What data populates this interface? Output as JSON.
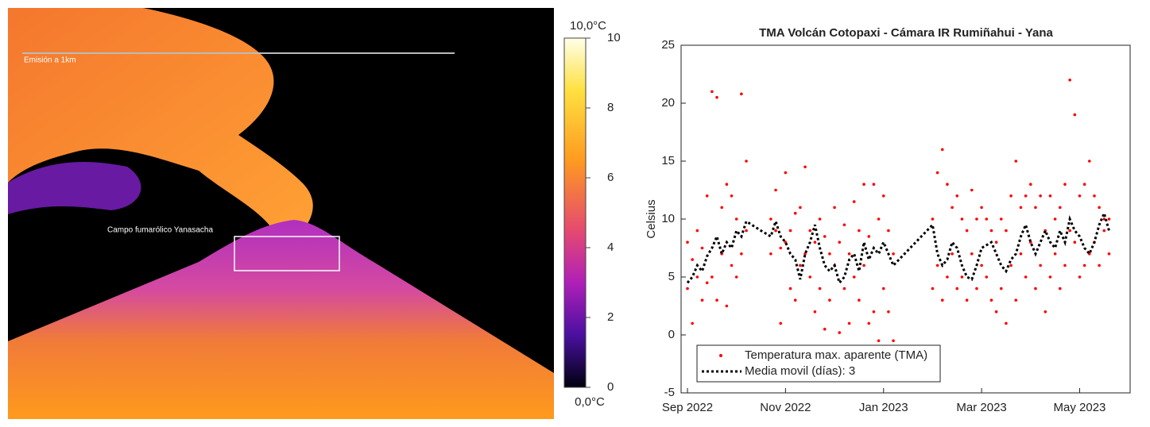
{
  "thermal_image": {
    "labels": [
      "Emisión a 1km",
      "Campo fumarólico Yanasacha"
    ]
  },
  "chart_data": [
    {
      "type": "colorbar",
      "max_label": "10,0°C",
      "min_label": "0,0°C",
      "ylim": [
        0,
        10
      ],
      "yticks": [
        0,
        2,
        4,
        6,
        8,
        10
      ]
    },
    {
      "type": "scatter",
      "title": "TMA Volcán Cotopaxi - Cámara IR Rumiñahui - Yana",
      "y_label": "Celsius",
      "xlim": [
        -0.13,
        9.03
      ],
      "xticks": [
        {
          "value": 0,
          "label": "Sep 2022"
        },
        {
          "value": 2,
          "label": "Nov 2022"
        },
        {
          "value": 4,
          "label": "Jan 2023"
        },
        {
          "value": 6,
          "label": "Mar 2023"
        },
        {
          "value": 8,
          "label": "May 2023"
        }
      ],
      "ylim": [
        -5,
        25
      ],
      "yticks": [
        -5,
        0,
        5,
        10,
        15,
        20,
        25
      ],
      "legend": "lower left",
      "series": [
        {
          "name": "Temperatura max. aparente (TMA)",
          "color": "#ff0000",
          "style": "points",
          "x": [
            0,
            0,
            0.1,
            0.1,
            0.2,
            0.2,
            0.3,
            0.3,
            0.4,
            0.4,
            0.5,
            0.5,
            0.6,
            0.6,
            0.7,
            0.7,
            0.8,
            0.8,
            0.9,
            0.9,
            1,
            1,
            1.1,
            1.1,
            1.2,
            1.2,
            1.7,
            1.7,
            1.8,
            1.8,
            1.9,
            1.9,
            2,
            2,
            2.1,
            2.1,
            2.2,
            2.2,
            2.3,
            2.3,
            2.4,
            2.4,
            2.5,
            2.5,
            2.6,
            2.6,
            2.7,
            2.7,
            2.8,
            2.8,
            2.9,
            2.9,
            3,
            3,
            3.1,
            3.1,
            3.2,
            3.2,
            3.3,
            3.3,
            3.4,
            3.4,
            3.5,
            3.5,
            3.6,
            3.6,
            3.7,
            3.7,
            3.8,
            3.8,
            3.9,
            3.9,
            4,
            4,
            4.1,
            4.1,
            4.2,
            4.2,
            5,
            5,
            5.1,
            5.1,
            5.2,
            5.2,
            5.3,
            5.3,
            5.4,
            5.4,
            5.5,
            5.5,
            5.6,
            5.6,
            5.7,
            5.7,
            5.8,
            5.8,
            5.9,
            5.9,
            6,
            6,
            6.1,
            6.1,
            6.2,
            6.2,
            6.3,
            6.3,
            6.4,
            6.4,
            6.5,
            6.5,
            6.6,
            6.6,
            6.7,
            6.7,
            6.8,
            6.8,
            6.9,
            6.9,
            7,
            7,
            7.1,
            7.1,
            7.2,
            7.2,
            7.3,
            7.3,
            7.4,
            7.4,
            7.5,
            7.5,
            7.6,
            7.6,
            7.7,
            7.7,
            7.8,
            7.8,
            7.9,
            7.9,
            8,
            8,
            8.1,
            8.1,
            8.2,
            8.2,
            8.3,
            8.3,
            8.4,
            8.4,
            8.5,
            8.5,
            8.6,
            8.6
          ],
          "values": [
            4,
            8,
            1,
            6.5,
            5,
            9,
            3,
            7.5,
            4.5,
            12,
            21,
            5,
            20.5,
            3,
            7,
            11,
            2.5,
            13,
            6,
            12,
            5,
            10,
            20.8,
            7,
            9,
            15,
            7,
            10,
            9,
            12.5,
            1,
            7.5,
            8,
            14,
            4,
            9,
            3,
            10.5,
            6,
            11,
            7,
            14.5,
            5,
            9,
            2,
            8,
            4,
            10,
            0.5,
            8.5,
            3,
            7,
            6,
            11,
            0.2,
            8,
            4,
            9.5,
            1,
            7,
            5,
            11.5,
            3,
            9,
            6,
            13,
            1,
            8.5,
            2,
            13,
            -0.5,
            10,
            4,
            12,
            2,
            9,
            -0.5,
            7,
            4,
            10,
            6,
            14,
            3,
            16,
            5,
            13,
            7,
            11,
            4,
            12,
            5,
            10,
            3,
            9,
            7,
            12.5,
            4,
            10,
            6,
            11,
            5,
            10,
            3,
            9,
            2,
            8,
            4,
            10,
            1,
            9,
            6,
            12,
            3,
            15,
            7,
            11,
            5,
            12,
            8,
            13,
            4,
            11,
            6,
            12,
            2,
            9,
            5,
            12,
            7,
            10,
            4,
            11,
            6,
            13,
            9,
            22,
            8,
            19,
            5,
            12,
            6,
            13,
            7,
            15,
            8,
            12,
            6,
            11,
            9,
            10,
            7,
            10
          ]
        },
        {
          "name": "Media movil (días): 3",
          "color": "#000000",
          "style": "dotted",
          "x": [
            0,
            0.1,
            0.2,
            0.3,
            0.4,
            0.5,
            0.6,
            0.7,
            0.8,
            0.9,
            1,
            1.1,
            1.2,
            1.5,
            1.7,
            1.8,
            1.9,
            2,
            2.1,
            2.2,
            2.3,
            2.4,
            2.5,
            2.6,
            2.7,
            2.8,
            2.9,
            3,
            3.1,
            3.2,
            3.3,
            3.4,
            3.5,
            3.6,
            3.7,
            3.8,
            3.9,
            4,
            4.1,
            4.2,
            5,
            5.1,
            5.2,
            5.3,
            5.4,
            5.5,
            5.6,
            5.7,
            5.8,
            5.9,
            6,
            6.2,
            6.3,
            6.4,
            6.5,
            6.6,
            6.7,
            6.8,
            6.9,
            7,
            7.1,
            7.2,
            7.3,
            7.4,
            7.5,
            7.6,
            7.7,
            7.8,
            7.9,
            8,
            8.1,
            8.2,
            8.3,
            8.4,
            8.5,
            8.6
          ],
          "values": [
            4.5,
            5,
            6,
            5.5,
            6.8,
            7.5,
            8.5,
            7,
            8,
            7.5,
            9,
            8.5,
            9.8,
            9,
            8.5,
            9.8,
            8.5,
            8,
            7,
            6.5,
            4.8,
            7,
            8,
            9.5,
            7.5,
            6,
            5.5,
            6,
            4.5,
            5,
            6.5,
            7,
            5.5,
            8,
            6.5,
            7.5,
            7,
            8,
            7,
            6,
            9.5,
            7,
            6,
            6.5,
            8,
            7.5,
            6,
            5,
            4.8,
            6,
            7.5,
            8,
            7,
            6,
            5.5,
            6.5,
            7,
            8.5,
            9.5,
            8,
            7,
            8,
            9,
            8,
            7.5,
            9,
            8,
            10,
            9,
            8.5,
            7.5,
            7,
            8,
            9.5,
            10.5,
            9
          ]
        }
      ]
    }
  ]
}
